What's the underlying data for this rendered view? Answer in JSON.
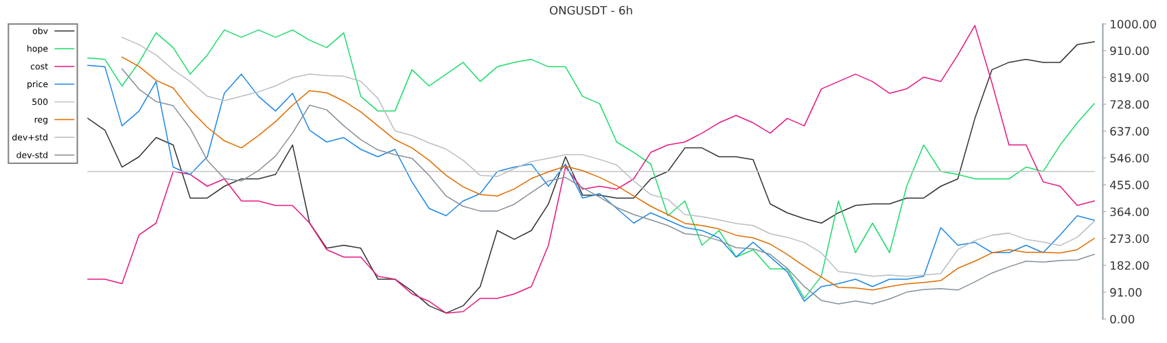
{
  "chart_data": {
    "type": "line",
    "title": "ONGUSDT - 6h",
    "categories": [
      null,
      null,
      null,
      null,
      null,
      null,
      null,
      null,
      null,
      null,
      null,
      null,
      null,
      null,
      null,
      null,
      null,
      null,
      null,
      null,
      null,
      null,
      null,
      null,
      null,
      null,
      null,
      null,
      null,
      null,
      null,
      null,
      null,
      null,
      null,
      null,
      null,
      null,
      null,
      null,
      null,
      null,
      null,
      null,
      null,
      null,
      null,
      null,
      null,
      null,
      null,
      null,
      null,
      null,
      null,
      null,
      null,
      null,
      null,
      null
    ],
    "series": [
      {
        "name": "obv",
        "color": "#333333",
        "values": [
          680,
          640,
          515,
          550,
          615,
          590,
          410,
          410,
          450,
          475,
          475,
          490,
          590,
          325,
          240,
          250,
          240,
          135,
          135,
          95,
          45,
          20,
          45,
          110,
          300,
          270,
          300,
          390,
          550,
          420,
          420,
          410,
          410,
          475,
          500,
          580,
          580,
          550,
          550,
          540,
          390,
          360,
          340,
          325,
          360,
          385,
          390,
          390,
          410,
          410,
          450,
          475,
          680,
          845,
          870,
          880,
          870,
          870,
          930,
          940
        ]
      },
      {
        "name": "hope",
        "color": "#1ddc6a",
        "values": [
          885,
          880,
          790,
          870,
          970,
          920,
          830,
          895,
          980,
          955,
          980,
          955,
          980,
          945,
          920,
          970,
          755,
          705,
          705,
          845,
          790,
          830,
          870,
          805,
          855,
          870,
          880,
          855,
          855,
          755,
          730,
          600,
          565,
          525,
          350,
          400,
          250,
          300,
          210,
          235,
          170,
          170,
          70,
          145,
          400,
          225,
          325,
          225,
          450,
          590,
          500,
          490,
          475,
          475,
          475,
          515,
          500,
          590,
          665,
          730
        ]
      },
      {
        "name": "cost",
        "color": "#e6197f",
        "values": [
          135,
          135,
          120,
          285,
          325,
          500,
          490,
          450,
          475,
          400,
          400,
          385,
          385,
          325,
          235,
          210,
          210,
          145,
          135,
          85,
          60,
          20,
          25,
          70,
          70,
          85,
          110,
          250,
          515,
          440,
          450,
          440,
          475,
          565,
          590,
          600,
          630,
          665,
          690,
          665,
          630,
          680,
          655,
          780,
          805,
          830,
          805,
          765,
          780,
          820,
          805,
          895,
          995,
          800,
          590,
          590,
          465,
          450,
          385,
          400
        ]
      },
      {
        "name": "price",
        "color": "#1e88e5",
        "values": [
          860,
          855,
          655,
          705,
          805,
          515,
          490,
          550,
          765,
          830,
          755,
          705,
          765,
          640,
          600,
          615,
          575,
          550,
          575,
          465,
          375,
          350,
          400,
          425,
          500,
          515,
          525,
          450,
          525,
          410,
          425,
          375,
          325,
          360,
          335,
          310,
          300,
          275,
          210,
          260,
          210,
          160,
          60,
          110,
          120,
          135,
          110,
          135,
          135,
          145,
          310,
          250,
          260,
          225,
          225,
          250,
          225,
          285,
          350,
          335
        ]
      },
      {
        "name": "500",
        "color": "#c4c4c4",
        "values": [
          500,
          500,
          500,
          500,
          500,
          500,
          500,
          500,
          500,
          500,
          500,
          500,
          500,
          500,
          500,
          500,
          500,
          500,
          500,
          500,
          500,
          500,
          500,
          500,
          500,
          500,
          500,
          500,
          500,
          500,
          500,
          500,
          500,
          500,
          500,
          500,
          500,
          500,
          500,
          500,
          500,
          500,
          500,
          500,
          500,
          500,
          500,
          500,
          500,
          500,
          500,
          500,
          500,
          500,
          500,
          500,
          500,
          500,
          500,
          500
        ]
      },
      {
        "name": "reg",
        "color": "#e06c00",
        "values": [
          null,
          null,
          888,
          856,
          809,
          783,
          709,
          650,
          604,
          580,
          622,
          669,
          725,
          774,
          767,
          739,
          702,
          655,
          608,
          580,
          538,
          487,
          448,
          422,
          417,
          441,
          476,
          499,
          518,
          503,
          480,
          452,
          417,
          382,
          354,
          324,
          317,
          305,
          284,
          275,
          254,
          219,
          179,
          142,
          107,
          105,
          98,
          110,
          119,
          124,
          130,
          172,
          196,
          224,
          235,
          226,
          226,
          224,
          235,
          273
        ]
      },
      {
        "name": "dev+std",
        "color": "#b9bec3",
        "values": [
          null,
          null,
          955,
          930,
          895,
          845,
          805,
          755,
          740,
          755,
          770,
          790,
          818,
          830,
          825,
          823,
          806,
          748,
          638,
          622,
          597,
          576,
          538,
          487,
          483,
          510,
          534,
          545,
          557,
          557,
          541,
          522,
          468,
          422,
          406,
          354,
          347,
          336,
          324,
          317,
          289,
          277,
          259,
          224,
          161,
          154,
          145,
          149,
          145,
          149,
          154,
          235,
          266,
          284,
          291,
          270,
          261,
          249,
          277,
          331
        ]
      },
      {
        "name": "dev-std",
        "color": "#86909a",
        "values": [
          null,
          null,
          848,
          779,
          737,
          723,
          646,
          538,
          476,
          468,
          503,
          552,
          631,
          725,
          709,
          655,
          608,
          573,
          557,
          545,
          487,
          417,
          382,
          366,
          366,
          389,
          429,
          468,
          480,
          445,
          413,
          378,
          354,
          336,
          317,
          289,
          284,
          266,
          242,
          238,
          219,
          172,
          110,
          63,
          51,
          61,
          51,
          68,
          91,
          100,
          103,
          98,
          126,
          156,
          177,
          196,
          193,
          198,
          200,
          219
        ]
      }
    ],
    "ylim": [
      0,
      1000
    ],
    "yticks": [
      {
        "value": 0,
        "label": "0.00"
      },
      {
        "value": 91,
        "label": "91.00"
      },
      {
        "value": 182,
        "label": "182.00"
      },
      {
        "value": 273,
        "label": "273.00"
      },
      {
        "value": 364,
        "label": "364.00"
      },
      {
        "value": 455,
        "label": "455.00"
      },
      {
        "value": 546,
        "label": "546.00"
      },
      {
        "value": 637,
        "label": "637.00"
      },
      {
        "value": 728,
        "label": "728.00"
      },
      {
        "value": 819,
        "label": "819.00"
      },
      {
        "value": 910,
        "label": "910.00"
      },
      {
        "value": 1000,
        "label": "1000.00"
      }
    ],
    "tick_labels": "y",
    "grid": false,
    "legend": "top left",
    "marker": "none",
    "line_style": "solid"
  }
}
